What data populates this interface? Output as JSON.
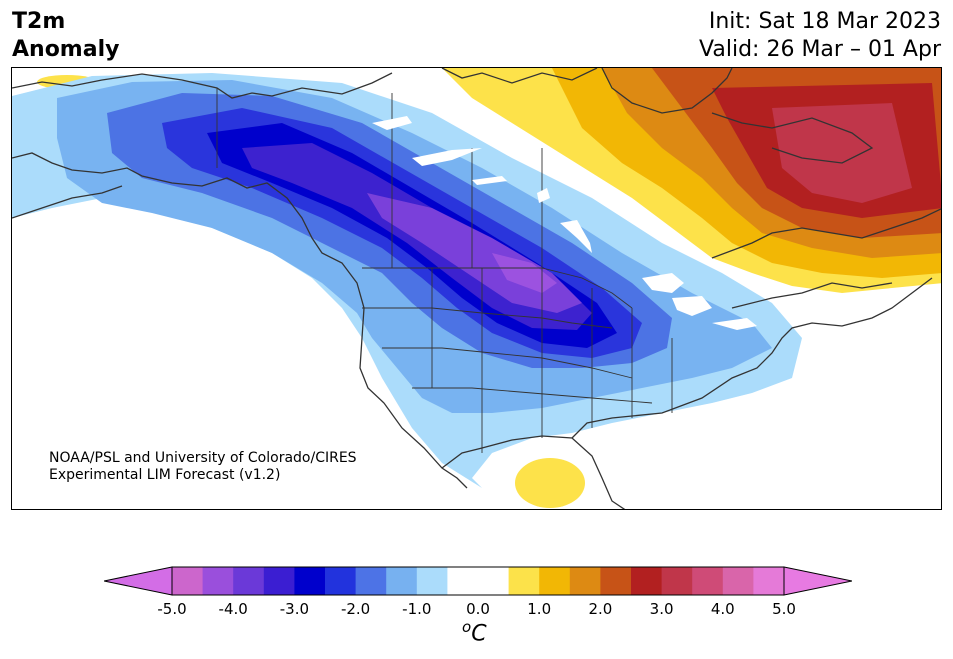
{
  "title": {
    "line1": "T2m",
    "line2": "Anomaly"
  },
  "init_label": "Init: Sat 18 Mar 2023",
  "valid_label": "Valid: 26 Mar – 01 Apr",
  "credit": {
    "line1": "NOAA/PSL and University of Colorado/CIRES",
    "line2": "Experimental LIM Forecast (v1.2)"
  },
  "colorbar": {
    "ticks": [
      "-5.0",
      "-4.0",
      "-3.0",
      "-2.0",
      "-1.0",
      "0.0",
      "1.0",
      "2.0",
      "3.0",
      "4.0",
      "5.0"
    ],
    "unit_sup": "o",
    "unit": "C",
    "range": [
      -5.0,
      5.0
    ],
    "colors": [
      "#cc66cc",
      "#9a4fdc",
      "#6b39d8",
      "#3b1ed2",
      "#0000cc",
      "#2233dd",
      "#4d73e6",
      "#77b1f0",
      "#abdcfb",
      "#ffffff",
      "#ffffff",
      "#fce24a",
      "#f2b705",
      "#dd8a13",
      "#c75317",
      "#b22020",
      "#c0364a",
      "#cf4b77",
      "#d965aa",
      "#e57ad8"
    ],
    "under_color": "#d36de6",
    "over_color": "#e77ae2"
  },
  "map": {
    "ocean": "#ffffff",
    "coast": "#333333",
    "anomaly_colors": {
      "minus_4_5": "#9c52e0",
      "minus_4": "#7a40da",
      "minus_3": "#3d22cf",
      "minus_2_5": "#0000cc",
      "minus_2": "#2a35dc",
      "minus_1_5": "#4c73e4",
      "minus_1": "#78b3f1",
      "minus_0_5": "#abdcfb",
      "plus_0_5": "#fde24a",
      "plus_1": "#f2b705",
      "plus_1_5": "#dd8a13",
      "plus_2": "#c75317",
      "plus_2_5": "#b22020",
      "plus_3": "#c0364a"
    }
  }
}
